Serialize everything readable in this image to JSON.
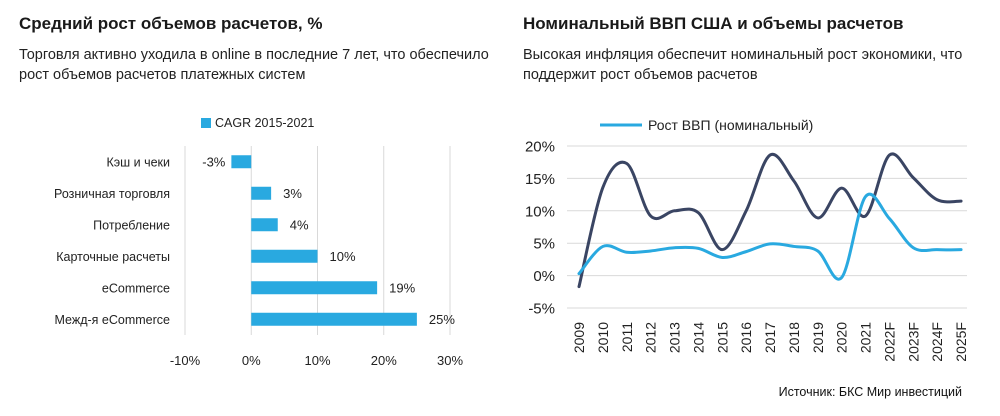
{
  "left": {
    "title": "Средний рост объемов расчетов, %",
    "subtitle": "Торговля активно уходила в online в последние 7 лет, что обеспечило рост объемов расчетов платежных систем"
  },
  "right": {
    "title": "Номинальный ВВП США и объемы расчетов",
    "subtitle": "Высокая инфляция обеспечит номинальный рост экономики, что поддержит рост объемов расчетов"
  },
  "source": "Источник: БКС Мир инвестиций",
  "colors": {
    "accent": "#29a9e0",
    "dark": "#3a4563",
    "grid": "#d9d9d9"
  },
  "chart_data": [
    {
      "type": "bar",
      "orientation": "horizontal",
      "categories": [
        "Кэш и чеки",
        "Розничная торговля",
        "Потребление",
        "Карточные расчеты",
        "eCommerce",
        "Межд-я eCommerce"
      ],
      "series": [
        {
          "name": "CAGR 2015-2021",
          "values": [
            -3,
            3,
            4,
            10,
            19,
            25
          ]
        }
      ],
      "value_labels": [
        "-3%",
        "3%",
        "4%",
        "10%",
        "19%",
        "25%"
      ],
      "xlim": [
        -10,
        30
      ],
      "xticks": [
        "-10%",
        "0%",
        "10%",
        "20%",
        "30%"
      ],
      "grid": true,
      "legend": "top"
    },
    {
      "type": "line",
      "x": [
        "2009",
        "2010",
        "2011",
        "2012",
        "2013",
        "2014",
        "2015",
        "2016",
        "2017",
        "2018",
        "2019",
        "2020",
        "2021",
        "2022F",
        "2023F",
        "2024F",
        "2025F"
      ],
      "series": [
        {
          "name": "Рост ВВП (номинальный)",
          "color": "#29a9e0",
          "values": [
            0.3,
            4.5,
            3.6,
            3.8,
            4.3,
            4.2,
            2.8,
            3.7,
            4.9,
            4.5,
            3.8,
            -0.3,
            12.2,
            8.8,
            4.3,
            4.0,
            4.0
          ]
        },
        {
          "name": "",
          "color": "#3a4563",
          "values": [
            -1.7,
            13.6,
            17.3,
            9.2,
            10.0,
            9.7,
            4.0,
            10.0,
            18.6,
            14.6,
            8.9,
            13.5,
            9.2,
            18.6,
            15.1,
            11.7,
            11.5
          ]
        }
      ],
      "ylim": [
        -5,
        20
      ],
      "yticks": [
        "-5%",
        "0%",
        "5%",
        "10%",
        "15%",
        "20%"
      ],
      "grid": true,
      "legend": "top"
    }
  ]
}
